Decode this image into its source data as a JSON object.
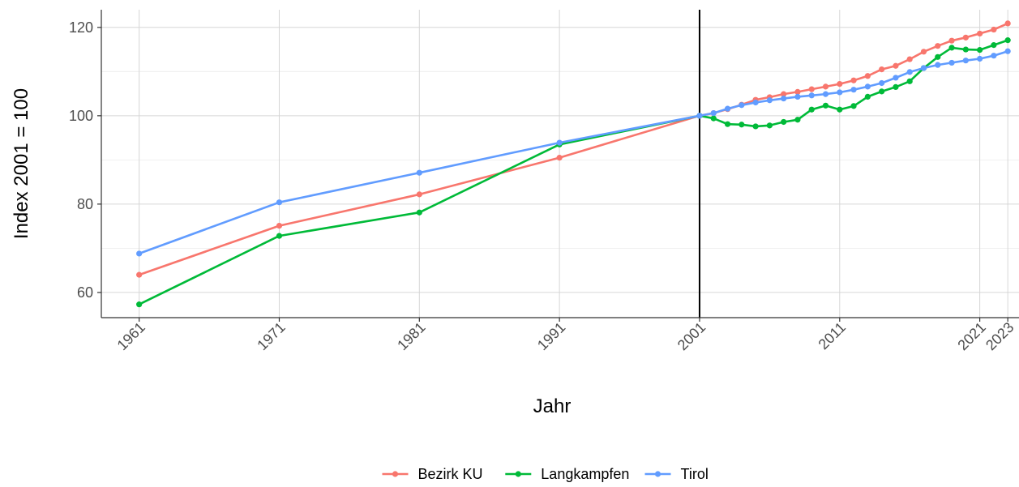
{
  "chart_data": {
    "type": "line",
    "xlabel": "Jahr",
    "ylabel": "Index 2001 = 100",
    "xlim": [
      1958.3,
      2023.8
    ],
    "ylim": [
      54.3,
      124.0
    ],
    "x_ticks": [
      1961,
      1971,
      1981,
      1991,
      2001,
      2011,
      2021,
      2023
    ],
    "y_ticks": [
      60,
      80,
      100,
      120
    ],
    "grid": true,
    "vline": 2001,
    "legend_position": "bottom",
    "series": [
      {
        "name": "Bezirk KU",
        "color": "#f8766d",
        "x": [
          1961,
          1971,
          1981,
          1991,
          2001,
          2002,
          2003,
          2004,
          2005,
          2006,
          2007,
          2008,
          2009,
          2010,
          2011,
          2012,
          2013,
          2014,
          2015,
          2016,
          2017,
          2018,
          2019,
          2020,
          2021,
          2022,
          2023
        ],
        "y": [
          64.0,
          75.1,
          82.2,
          90.5,
          100.0,
          100.6,
          101.5,
          102.5,
          103.6,
          104.2,
          104.9,
          105.4,
          106.0,
          106.6,
          107.2,
          108.0,
          109.0,
          110.5,
          111.3,
          112.8,
          114.5,
          115.8,
          117.0,
          117.7,
          118.6,
          119.5,
          120.9
        ]
      },
      {
        "name": "Langkampfen",
        "color": "#00ba38",
        "x": [
          1961,
          1971,
          1981,
          1991,
          2001,
          2002,
          2003,
          2004,
          2005,
          2006,
          2007,
          2008,
          2009,
          2010,
          2011,
          2012,
          2013,
          2014,
          2015,
          2016,
          2017,
          2018,
          2019,
          2020,
          2021,
          2022,
          2023
        ],
        "y": [
          57.3,
          72.8,
          78.1,
          93.5,
          100.0,
          99.4,
          98.1,
          98.0,
          97.6,
          97.8,
          98.6,
          99.1,
          101.4,
          102.3,
          101.4,
          102.2,
          104.3,
          105.5,
          106.5,
          107.8,
          110.8,
          113.3,
          115.4,
          115.0,
          114.9,
          116.0,
          117.1
        ]
      },
      {
        "name": "Tirol",
        "color": "#619cff",
        "x": [
          1961,
          1971,
          1981,
          1991,
          2001,
          2002,
          2003,
          2004,
          2005,
          2006,
          2007,
          2008,
          2009,
          2010,
          2011,
          2012,
          2013,
          2014,
          2015,
          2016,
          2017,
          2018,
          2019,
          2020,
          2021,
          2022,
          2023
        ],
        "y": [
          68.8,
          80.4,
          87.1,
          93.9,
          100.0,
          100.6,
          101.6,
          102.4,
          103.0,
          103.5,
          103.9,
          104.3,
          104.6,
          104.9,
          105.3,
          105.9,
          106.6,
          107.4,
          108.6,
          109.9,
          110.8,
          111.5,
          112.0,
          112.5,
          112.9,
          113.6,
          114.6
        ]
      }
    ]
  }
}
